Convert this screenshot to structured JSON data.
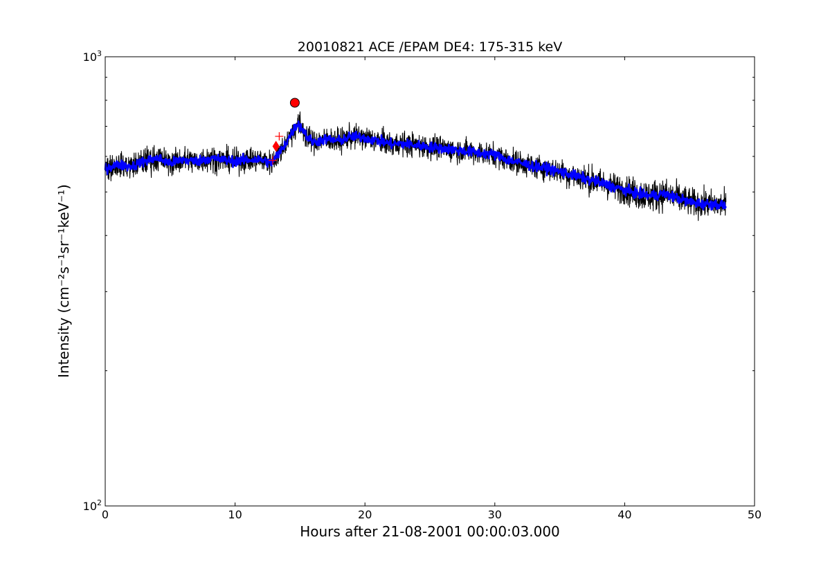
{
  "chart_data": {
    "type": "line",
    "title": "20010821 ACE /EPAM DE4: 175-315 keV",
    "xlabel": "Hours after 21-08-2001 00:00:03.000",
    "ylabel": "Intensity (cm⁻²s⁻¹sr⁻¹keV⁻¹)",
    "xlim": [
      0,
      50
    ],
    "ylim": [
      100,
      1000
    ],
    "yscale": "log",
    "xticks": [
      "0",
      "10",
      "20",
      "30",
      "40",
      "50"
    ],
    "yticks": [
      {
        "base": "10",
        "exp": "2",
        "value": 100
      },
      {
        "base": "10",
        "exp": "3",
        "value": 1000
      }
    ],
    "grid": false,
    "series": [
      {
        "style": "raw",
        "color": "#000000",
        "x": [
          0,
          1,
          2,
          3,
          4,
          5,
          6,
          7,
          8,
          9,
          10,
          11,
          12,
          12.8,
          13.2,
          13.6,
          14,
          14.4,
          14.8,
          15.2,
          15.6,
          16,
          17,
          18,
          19,
          20,
          21,
          22,
          23,
          24,
          25,
          26,
          27,
          28,
          29,
          30,
          31,
          32,
          33,
          34,
          35,
          36,
          37,
          38,
          39,
          40,
          41,
          42,
          43,
          44,
          45,
          46,
          47,
          47.8
        ],
        "y": [
          565,
          575,
          570,
          585,
          595,
          580,
          590,
          585,
          595,
          590,
          585,
          590,
          590,
          580,
          600,
          620,
          650,
          680,
          710,
          690,
          660,
          645,
          655,
          650,
          665,
          660,
          650,
          640,
          640,
          635,
          630,
          625,
          620,
          615,
          610,
          605,
          590,
          580,
          570,
          565,
          555,
          545,
          535,
          525,
          515,
          505,
          495,
          490,
          495,
          485,
          475,
          470,
          470,
          465
        ],
        "spread": [
          0.07,
          0.06,
          0.06,
          0.07,
          0.07,
          0.06,
          0.07,
          0.06,
          0.07,
          0.06,
          0.06,
          0.06,
          0.06,
          0.06,
          0.06,
          0.06,
          0.06,
          0.06,
          0.07,
          0.07,
          0.06,
          0.06,
          0.06,
          0.06,
          0.06,
          0.06,
          0.06,
          0.06,
          0.06,
          0.06,
          0.06,
          0.06,
          0.06,
          0.06,
          0.06,
          0.06,
          0.06,
          0.06,
          0.06,
          0.06,
          0.06,
          0.07,
          0.07,
          0.07,
          0.07,
          0.07,
          0.08,
          0.08,
          0.08,
          0.08,
          0.07,
          0.07,
          0.07,
          0.07
        ]
      },
      {
        "style": "smoothed",
        "color": "#0000ff",
        "x": [
          0,
          1,
          2,
          3,
          4,
          5,
          6,
          7,
          8,
          9,
          10,
          11,
          12,
          12.8,
          13.2,
          13.6,
          14,
          14.4,
          14.8,
          15.2,
          15.6,
          16,
          17,
          18,
          19,
          20,
          21,
          22,
          23,
          24,
          25,
          26,
          27,
          28,
          29,
          30,
          31,
          32,
          33,
          34,
          35,
          36,
          37,
          38,
          39,
          40,
          41,
          42,
          43,
          44,
          45,
          46,
          47,
          47.8
        ],
        "y": [
          565,
          575,
          570,
          585,
          595,
          580,
          590,
          585,
          595,
          590,
          585,
          590,
          590,
          580,
          600,
          620,
          650,
          680,
          710,
          690,
          660,
          645,
          655,
          650,
          665,
          660,
          650,
          640,
          640,
          635,
          630,
          625,
          620,
          615,
          610,
          605,
          590,
          580,
          570,
          565,
          555,
          545,
          535,
          525,
          515,
          505,
          495,
          490,
          495,
          485,
          475,
          470,
          470,
          465
        ],
        "spread": [
          0.025,
          0.025,
          0.025,
          0.025,
          0.025,
          0.025,
          0.025,
          0.025,
          0.025,
          0.025,
          0.025,
          0.025,
          0.025,
          0.025,
          0.025,
          0.025,
          0.025,
          0.025,
          0.025,
          0.025,
          0.025,
          0.025,
          0.025,
          0.025,
          0.025,
          0.025,
          0.025,
          0.025,
          0.025,
          0.025,
          0.025,
          0.025,
          0.025,
          0.025,
          0.025,
          0.025,
          0.025,
          0.025,
          0.025,
          0.025,
          0.025,
          0.025,
          0.025,
          0.025,
          0.025,
          0.025,
          0.025,
          0.025,
          0.025,
          0.025,
          0.025,
          0.025,
          0.025,
          0.025
        ]
      }
    ],
    "markers": [
      {
        "shape": "circle",
        "color": "#ff0000",
        "x": 14.6,
        "y": 790
      },
      {
        "shape": "diamond",
        "color": "#ff0000",
        "x": 13.15,
        "y": 632
      },
      {
        "shape": "plus",
        "color": "#ff0000",
        "x": 13.4,
        "y": 665
      },
      {
        "shape": "plus",
        "color": "#ff0000",
        "x": 12.9,
        "y": 588
      }
    ]
  }
}
